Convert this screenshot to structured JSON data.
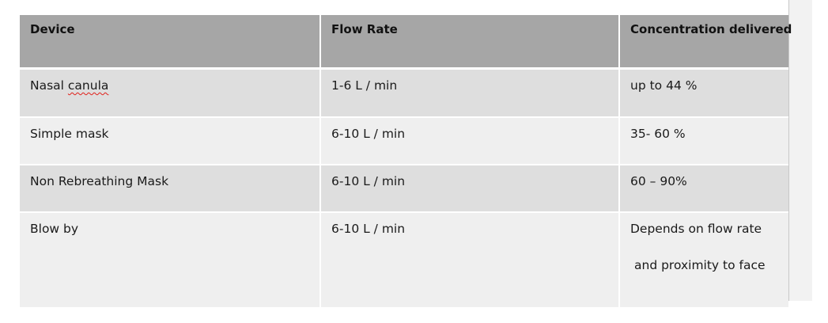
{
  "table": {
    "headers": [
      "Device",
      "Flow Rate",
      "Concentration delivered"
    ],
    "rows": [
      {
        "device_prefix": "Nasal ",
        "device_flagged": "canula",
        "flow_rate": "1-6 L / min",
        "concentration": "up to 44 %"
      },
      {
        "device": "Simple mask",
        "flow_rate": "6-10 L / min",
        "concentration": "35- 60 %"
      },
      {
        "device": "Non Rebreathing Mask",
        "flow_rate": "6-10 L / min",
        "concentration": "60 – 90%"
      },
      {
        "device": "Blow by",
        "flow_rate": "6-10 L / min",
        "concentration_line1": "Depends on flow rate",
        "concentration_line2": "and proximity to face"
      }
    ]
  },
  "colors": {
    "header_bg": "#a6a6a6",
    "row_dark": "#dedede",
    "row_light": "#efefef",
    "spellcheck_underline": "#e0201a"
  }
}
